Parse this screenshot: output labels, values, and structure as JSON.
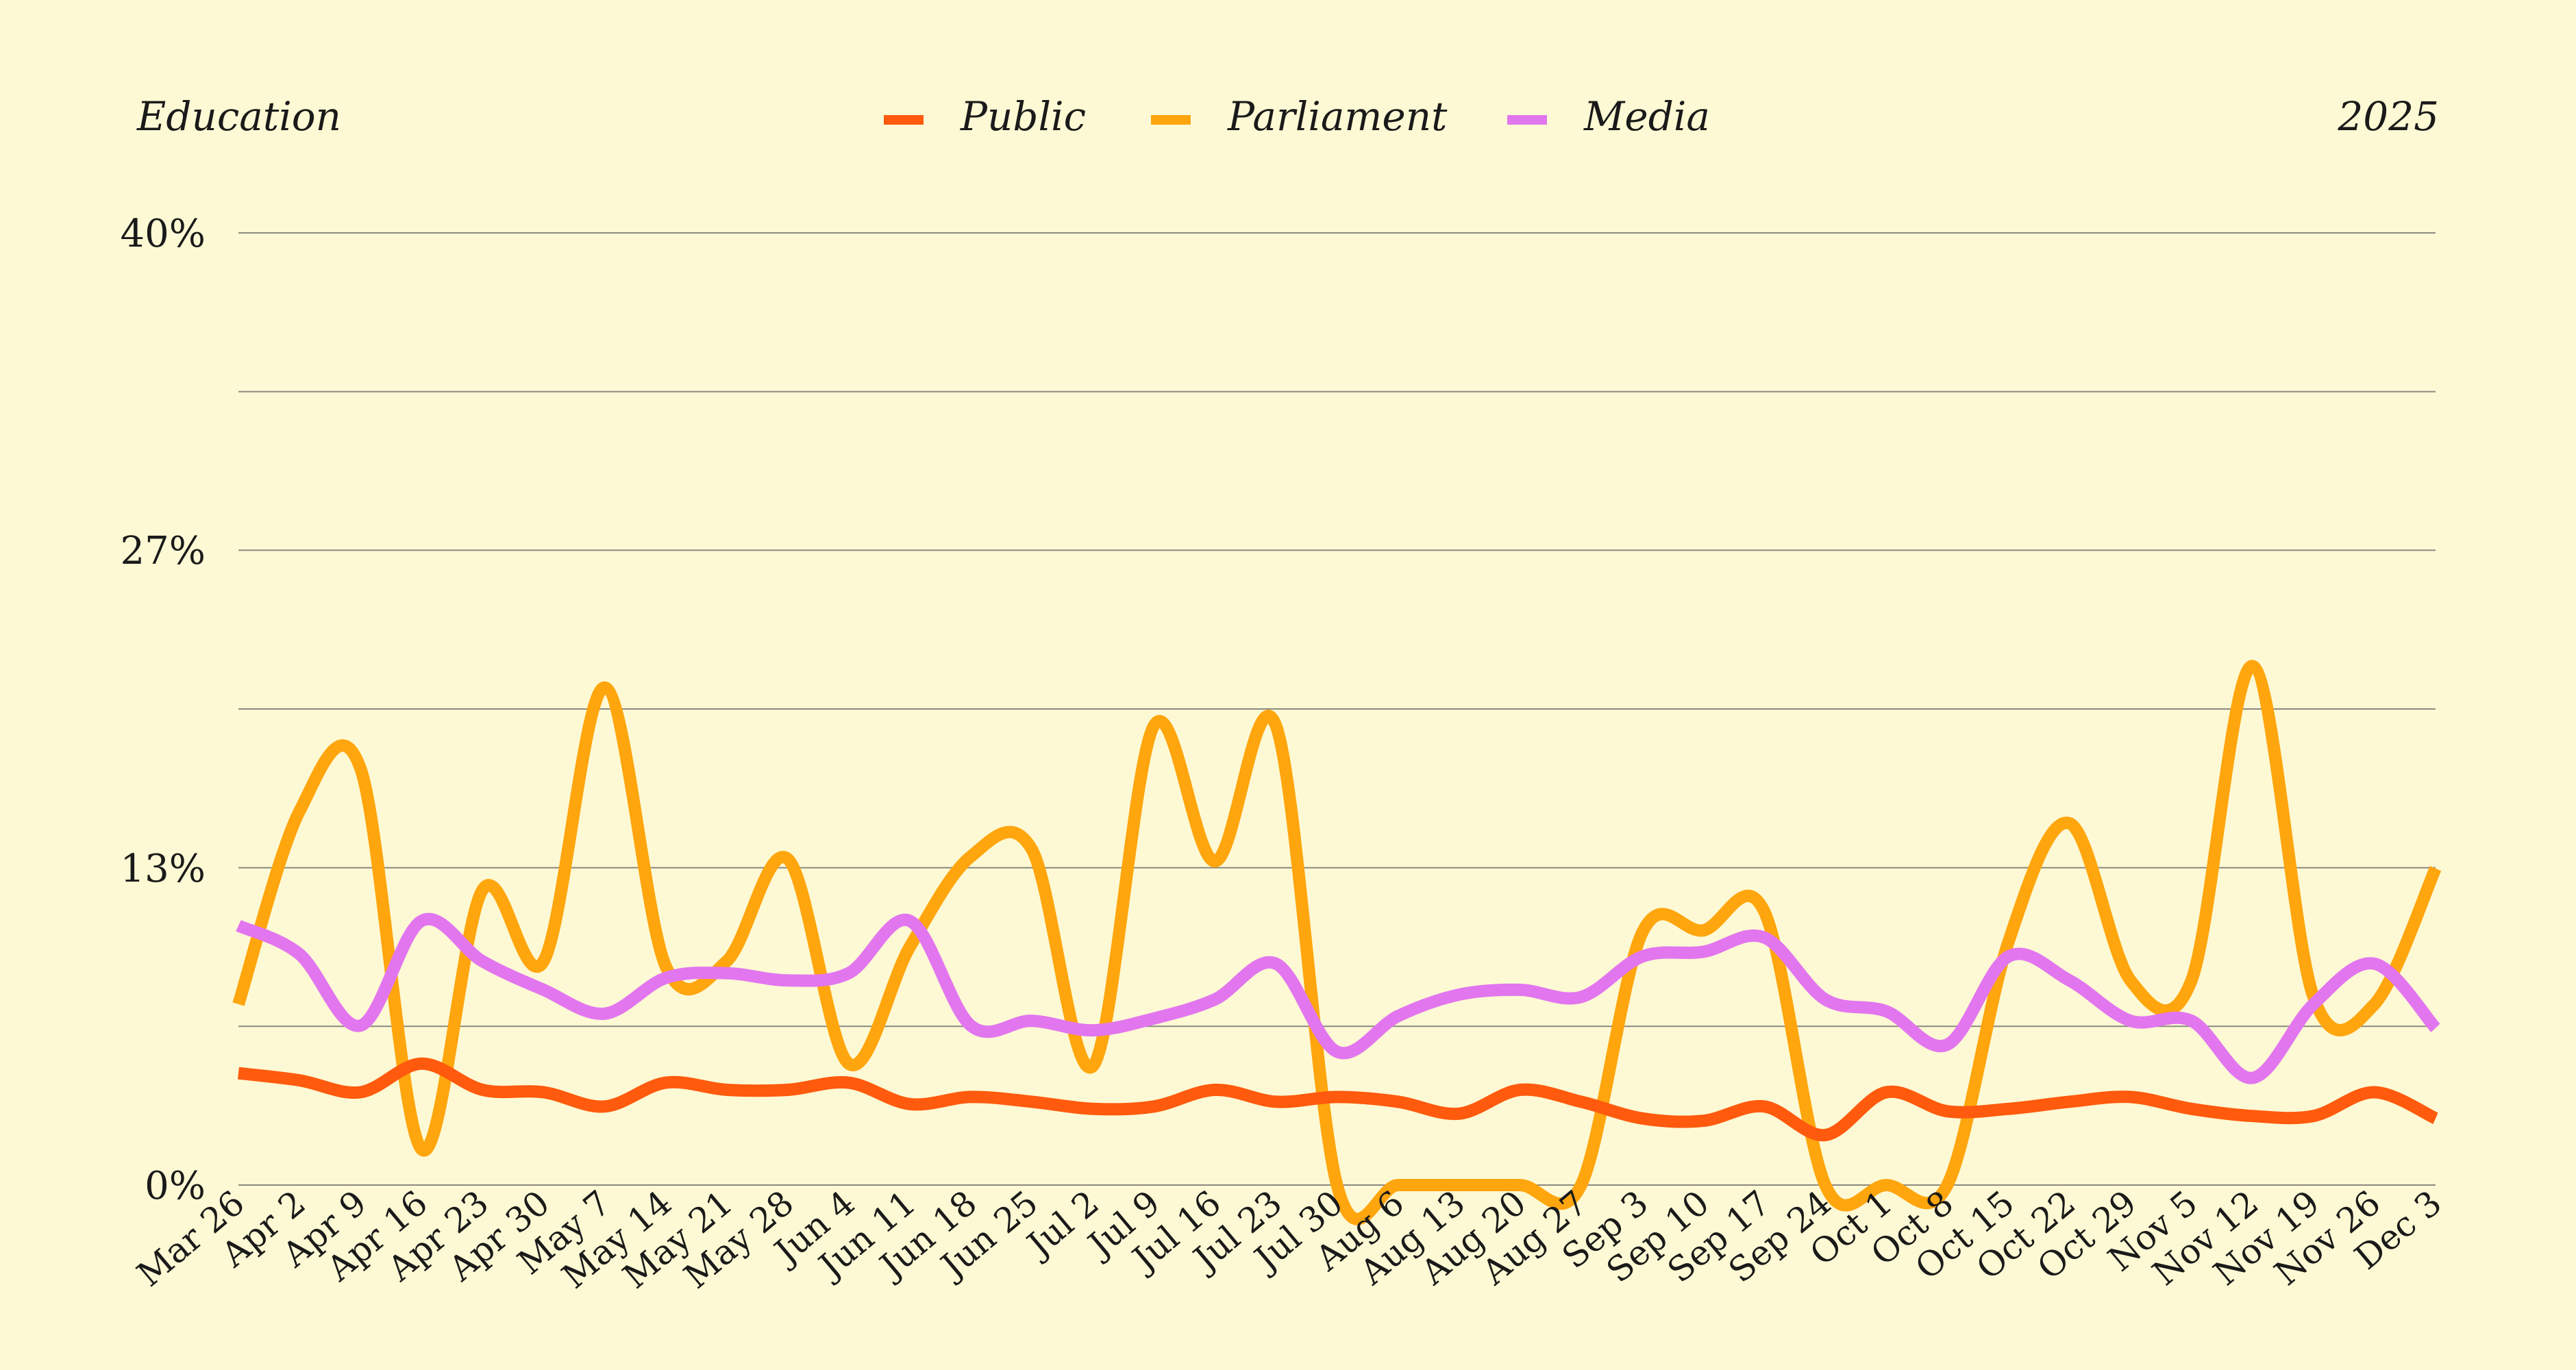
{
  "header": {
    "title": "Education",
    "year": "2025"
  },
  "colors": {
    "background": "#fdf9d4",
    "grid": "#8a8a80",
    "text": "#1a1a1a"
  },
  "chart_data": {
    "type": "line",
    "title": "Education",
    "subtitle": "2025",
    "legend_position": "top-center",
    "grid": true,
    "ylim": [
      0,
      40
    ],
    "ytick_labels": [
      "0%",
      "13%",
      "27%",
      "40%"
    ],
    "ytick_values": [
      0,
      13.33,
      26.67,
      40
    ],
    "gridline_values": [
      0,
      6.67,
      13.33,
      20,
      26.67,
      33.33,
      40
    ],
    "categories": [
      "Mar 26",
      "Apr 2",
      "Apr 9",
      "Apr 16",
      "Apr 23",
      "Apr 30",
      "May 7",
      "May 14",
      "May 21",
      "May 28",
      "Jun 4",
      "Jun 11",
      "Jun 18",
      "Jun 25",
      "Jul 2",
      "Jul 9",
      "Jul 16",
      "Jul 23",
      "Jul 30",
      "Aug 6",
      "Aug 13",
      "Aug 20",
      "Aug 27",
      "Sep 3",
      "Sep 10",
      "Sep 17",
      "Sep 24",
      "Oct 1",
      "Oct 8",
      "Oct 15",
      "Oct 22",
      "Oct 29",
      "Nov 5",
      "Nov 12",
      "Nov 19",
      "Nov 26",
      "Dec 3"
    ],
    "series": [
      {
        "name": "Public",
        "color": "#ff5a0d",
        "values": [
          4.7,
          4.4,
          3.9,
          5.1,
          4.0,
          3.9,
          3.3,
          4.3,
          4.0,
          4.0,
          4.3,
          3.4,
          3.7,
          3.5,
          3.2,
          3.3,
          4.0,
          3.5,
          3.7,
          3.5,
          3.0,
          4.0,
          3.5,
          2.8,
          2.7,
          3.3,
          2.1,
          3.9,
          3.1,
          3.2,
          3.5,
          3.7,
          3.2,
          2.9,
          2.9,
          3.9,
          2.8
        ]
      },
      {
        "name": "Parliament",
        "color": "#ffa50d",
        "values": [
          7.6,
          15.7,
          17.5,
          1.5,
          12.4,
          9.4,
          20.9,
          9.2,
          9.4,
          13.7,
          5.1,
          10.0,
          13.8,
          14.1,
          5.0,
          19.3,
          13.6,
          19.3,
          0.0,
          0.0,
          0.0,
          0.0,
          0.0,
          10.6,
          10.7,
          11.5,
          0.0,
          0.0,
          0.0,
          10.2,
          15.2,
          8.6,
          8.6,
          21.8,
          7.9,
          7.6,
          13.3
        ]
      },
      {
        "name": "Media",
        "color": "#e276ef",
        "values": [
          10.9,
          9.7,
          6.7,
          11.1,
          9.4,
          8.2,
          7.2,
          8.7,
          8.9,
          8.6,
          8.9,
          11.1,
          6.7,
          6.9,
          6.5,
          7.0,
          7.8,
          9.3,
          5.6,
          7.1,
          8.0,
          8.2,
          7.9,
          9.6,
          9.8,
          10.4,
          7.8,
          7.3,
          5.9,
          9.6,
          8.6,
          6.9,
          6.9,
          4.5,
          7.6,
          9.3,
          6.6
        ]
      }
    ]
  }
}
